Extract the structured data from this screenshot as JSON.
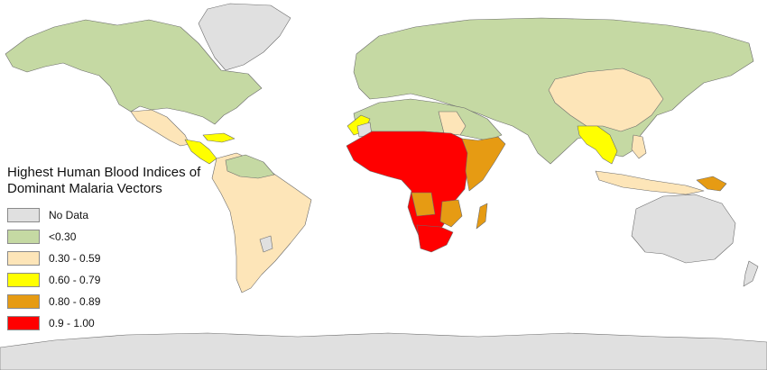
{
  "legend": {
    "title_line1": "Highest Human Blood Indices of",
    "title_line2": "Dominant Malaria Vectors",
    "items": [
      {
        "label": "No Data",
        "color": "#e0e0e0"
      },
      {
        "label": "<0.30",
        "color": "#c5d9a3"
      },
      {
        "label": "0.30 - 0.59",
        "color": "#fde5b8"
      },
      {
        "label": "0.60 - 0.79",
        "color": "#ffff00"
      },
      {
        "label": "0.80 - 0.89",
        "color": "#e69b13"
      },
      {
        "label": "0.9 - 1.00",
        "color": "#ff0000"
      }
    ]
  }
}
